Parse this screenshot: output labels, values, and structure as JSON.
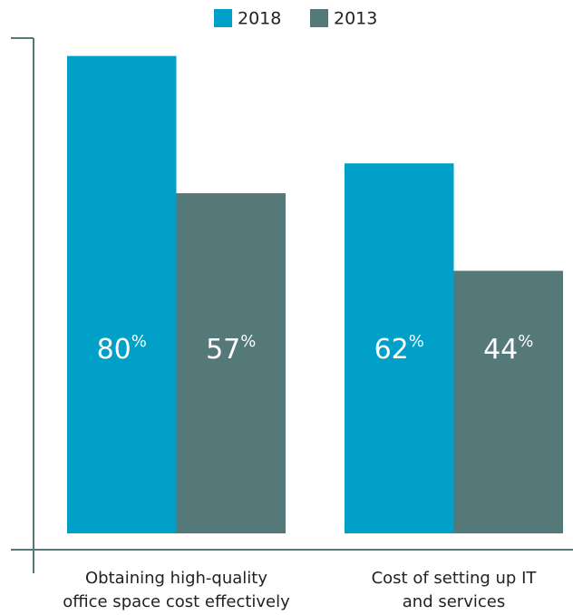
{
  "chart_data": {
    "type": "bar",
    "categories": [
      [
        "Obtaining high-quality",
        "office space cost effectively"
      ],
      [
        "Cost of setting up IT",
        "and services"
      ]
    ],
    "series": [
      {
        "name": "2018",
        "color": "#00a0c8",
        "values": [
          80,
          62
        ],
        "value_labels": [
          "80%",
          "62%"
        ]
      },
      {
        "name": "2013",
        "color": "#557878",
        "values": [
          57,
          44
        ],
        "value_labels": [
          "57%",
          "44%"
        ]
      }
    ],
    "ylim": [
      0,
      83
    ],
    "legend": "top"
  }
}
